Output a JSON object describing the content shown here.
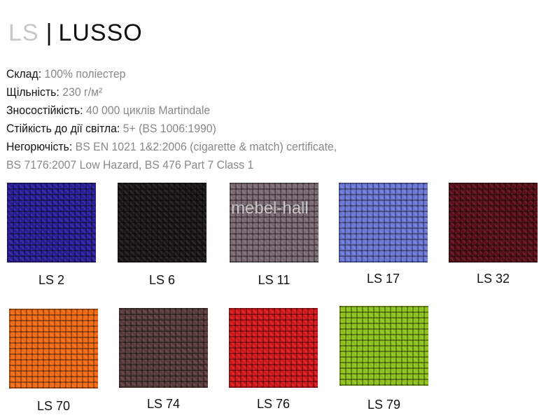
{
  "header": {
    "code": "LS",
    "separator": "|",
    "name": "LUSSO"
  },
  "specs": [
    {
      "key": "Склад:",
      "value": "100% поліестер"
    },
    {
      "key": "Щільність:",
      "value": "230 г/м²"
    },
    {
      "key": "Зносостійкість:",
      "value": "40 000 циклів Martindale"
    },
    {
      "key": "Стійкість до дії світла:",
      "value": "5+ (BS 1006:1990)"
    },
    {
      "key": "Негорючість:",
      "value": "BS EN 1021 1&2:2006 (cigarette & match) certificate,"
    },
    {
      "key": "",
      "value": "BS 7176:2007 Low Hazard, BS 476 Part 7 Class 1"
    }
  ],
  "watermark": "mebel-hall",
  "swatches": [
    {
      "label": "LS 2",
      "color": "#2a1f9a"
    },
    {
      "label": "LS 6",
      "color": "#1c1718"
    },
    {
      "label": "LS 11",
      "color": "#7a6a72"
    },
    {
      "label": "LS 17",
      "color": "#6c78d8"
    },
    {
      "label": "LS 32",
      "color": "#5a0f1a"
    },
    {
      "label": "LS 70",
      "color": "#f26a12"
    },
    {
      "label": "LS 74",
      "color": "#5a3c3a"
    },
    {
      "label": "LS 76",
      "color": "#d8181c"
    },
    {
      "label": "LS 79",
      "color": "#8ec21a"
    }
  ]
}
